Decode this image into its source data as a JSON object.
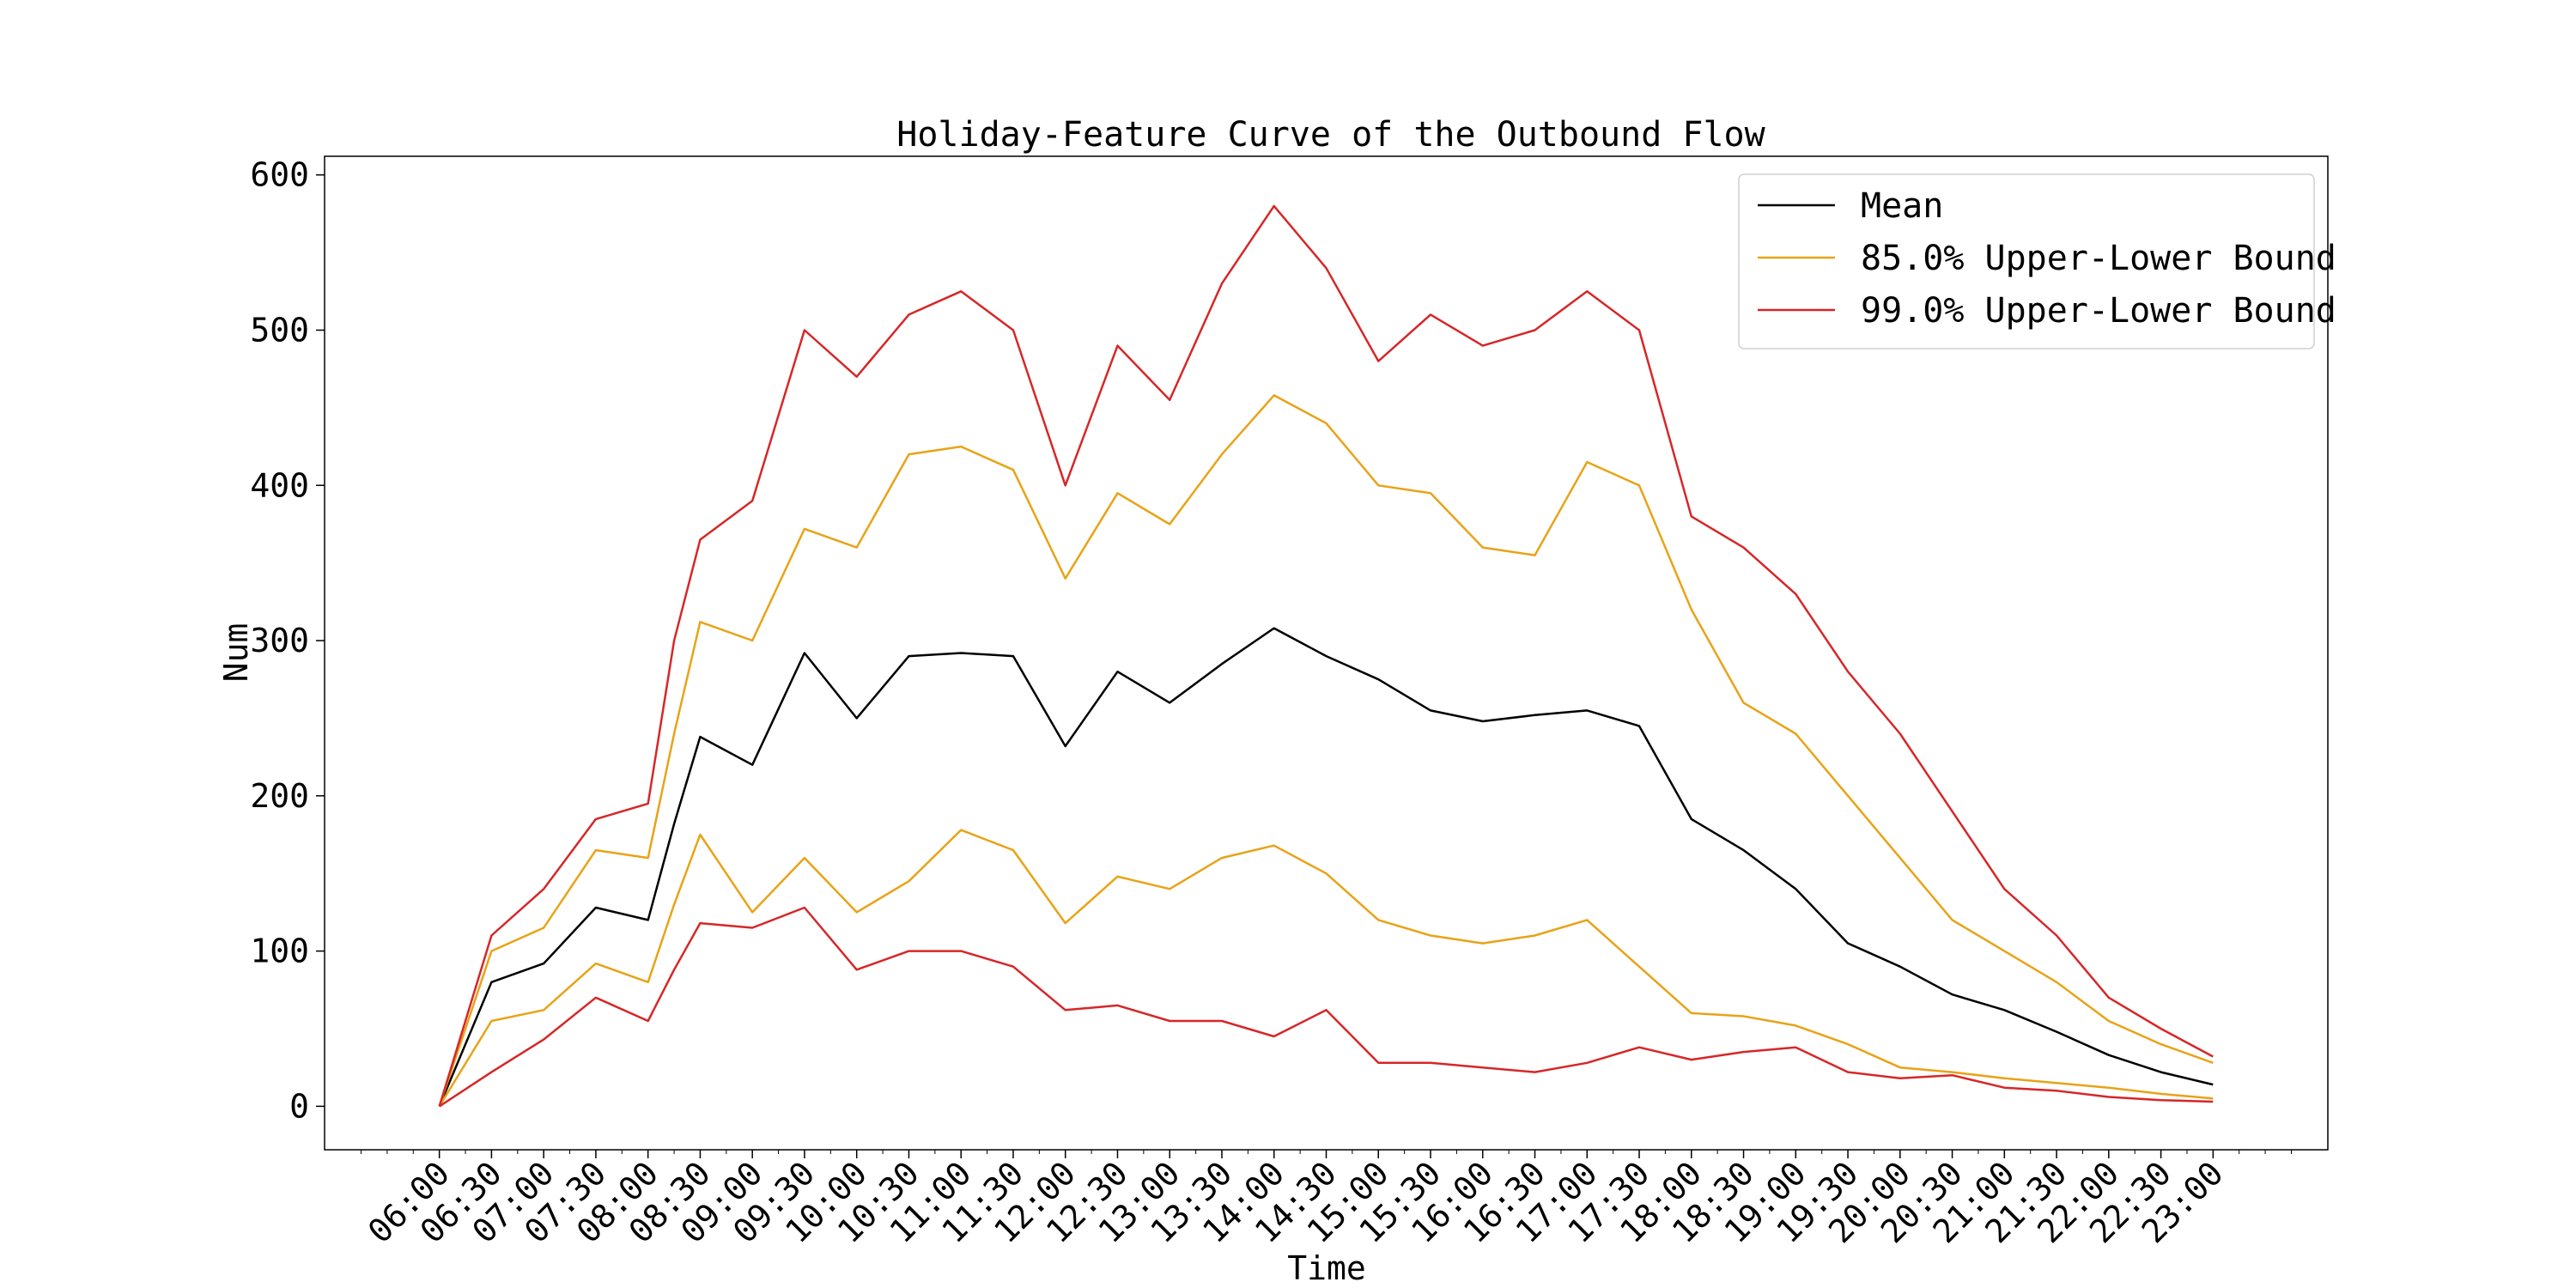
{
  "chart_data": {
    "type": "line",
    "title": "Holiday-Feature Curve of the Outbound Flow",
    "xlabel": "Time",
    "ylabel": "Num",
    "xlim": [
      -66,
      1086
    ],
    "ylim": [
      -28,
      612
    ],
    "yticks": [
      0,
      100,
      200,
      300,
      400,
      500,
      600
    ],
    "xticks": [
      {
        "label": "06:00",
        "minute": 0
      },
      {
        "label": "06:30",
        "minute": 30
      },
      {
        "label": "07:00",
        "minute": 60
      },
      {
        "label": "07:30",
        "minute": 90
      },
      {
        "label": "08:00",
        "minute": 120
      },
      {
        "label": "08:30",
        "minute": 150
      },
      {
        "label": "09:00",
        "minute": 180
      },
      {
        "label": "09:30",
        "minute": 210
      },
      {
        "label": "10:00",
        "minute": 240
      },
      {
        "label": "10:30",
        "minute": 270
      },
      {
        "label": "11:00",
        "minute": 300
      },
      {
        "label": "11:30",
        "minute": 330
      },
      {
        "label": "12:00",
        "minute": 360
      },
      {
        "label": "12:30",
        "minute": 390
      },
      {
        "label": "13:00",
        "minute": 420
      },
      {
        "label": "13:30",
        "minute": 450
      },
      {
        "label": "14:00",
        "minute": 480
      },
      {
        "label": "14:30",
        "minute": 510
      },
      {
        "label": "15:00",
        "minute": 540
      },
      {
        "label": "15:30",
        "minute": 570
      },
      {
        "label": "16:00",
        "minute": 600
      },
      {
        "label": "16:30",
        "minute": 630
      },
      {
        "label": "17:00",
        "minute": 660
      },
      {
        "label": "17:30",
        "minute": 690
      },
      {
        "label": "18:00",
        "minute": 720
      },
      {
        "label": "18:30",
        "minute": 750
      },
      {
        "label": "19:00",
        "minute": 780
      },
      {
        "label": "19:30",
        "minute": 810
      },
      {
        "label": "20:00",
        "minute": 840
      },
      {
        "label": "20:30",
        "minute": 870
      },
      {
        "label": "21:00",
        "minute": 900
      },
      {
        "label": "21:30",
        "minute": 930
      },
      {
        "label": "22:00",
        "minute": 960
      },
      {
        "label": "22:30",
        "minute": 990
      },
      {
        "label": "23:00",
        "minute": 1020
      }
    ],
    "grid": false,
    "legend_position": "top-right",
    "x": [
      0,
      30,
      60,
      90,
      120,
      135,
      150,
      180,
      210,
      240,
      270,
      300,
      330,
      360,
      390,
      420,
      450,
      480,
      510,
      540,
      570,
      600,
      630,
      660,
      690,
      720,
      750,
      780,
      810,
      840,
      870,
      900,
      930,
      960,
      990,
      1020
    ],
    "series": [
      {
        "name": "Mean",
        "color": "#000000",
        "values": [
          0,
          80,
          92,
          128,
          120,
          182,
          238,
          220,
          292,
          250,
          290,
          292,
          290,
          232,
          280,
          260,
          285,
          308,
          290,
          275,
          255,
          248,
          252,
          255,
          245,
          185,
          165,
          140,
          105,
          90,
          72,
          62,
          48,
          33,
          22,
          14
        ]
      },
      {
        "name": "85.0% Upper-Lower Bound",
        "color": "#e8a317",
        "band": "upper",
        "values": [
          0,
          100,
          115,
          165,
          160,
          240,
          312,
          300,
          372,
          360,
          420,
          425,
          410,
          340,
          395,
          375,
          420,
          458,
          440,
          400,
          395,
          360,
          355,
          415,
          400,
          320,
          260,
          240,
          200,
          160,
          120,
          100,
          80,
          55,
          40,
          28
        ]
      },
      {
        "name": "85.0% Upper-Lower Bound",
        "color": "#e8a317",
        "band": "lower",
        "values": [
          0,
          55,
          62,
          92,
          80,
          130,
          175,
          125,
          160,
          125,
          145,
          178,
          165,
          118,
          148,
          140,
          160,
          168,
          150,
          120,
          110,
          105,
          110,
          120,
          90,
          60,
          58,
          52,
          40,
          25,
          22,
          18,
          15,
          12,
          8,
          5
        ]
      },
      {
        "name": "99.0% Upper-Lower Bound",
        "color": "#d62728",
        "band": "upper",
        "values": [
          0,
          110,
          140,
          185,
          195,
          300,
          365,
          390,
          500,
          470,
          510,
          525,
          500,
          400,
          490,
          455,
          530,
          580,
          540,
          480,
          510,
          490,
          500,
          525,
          500,
          380,
          360,
          330,
          280,
          240,
          190,
          140,
          110,
          70,
          50,
          32
        ]
      },
      {
        "name": "99.0% Upper-Lower Bound",
        "color": "#d62728",
        "band": "lower",
        "values": [
          0,
          22,
          43,
          70,
          55,
          88,
          118,
          115,
          128,
          88,
          100,
          100,
          90,
          62,
          65,
          55,
          55,
          45,
          62,
          28,
          28,
          25,
          22,
          28,
          38,
          30,
          35,
          38,
          22,
          18,
          20,
          12,
          10,
          6,
          4,
          3
        ]
      }
    ]
  }
}
